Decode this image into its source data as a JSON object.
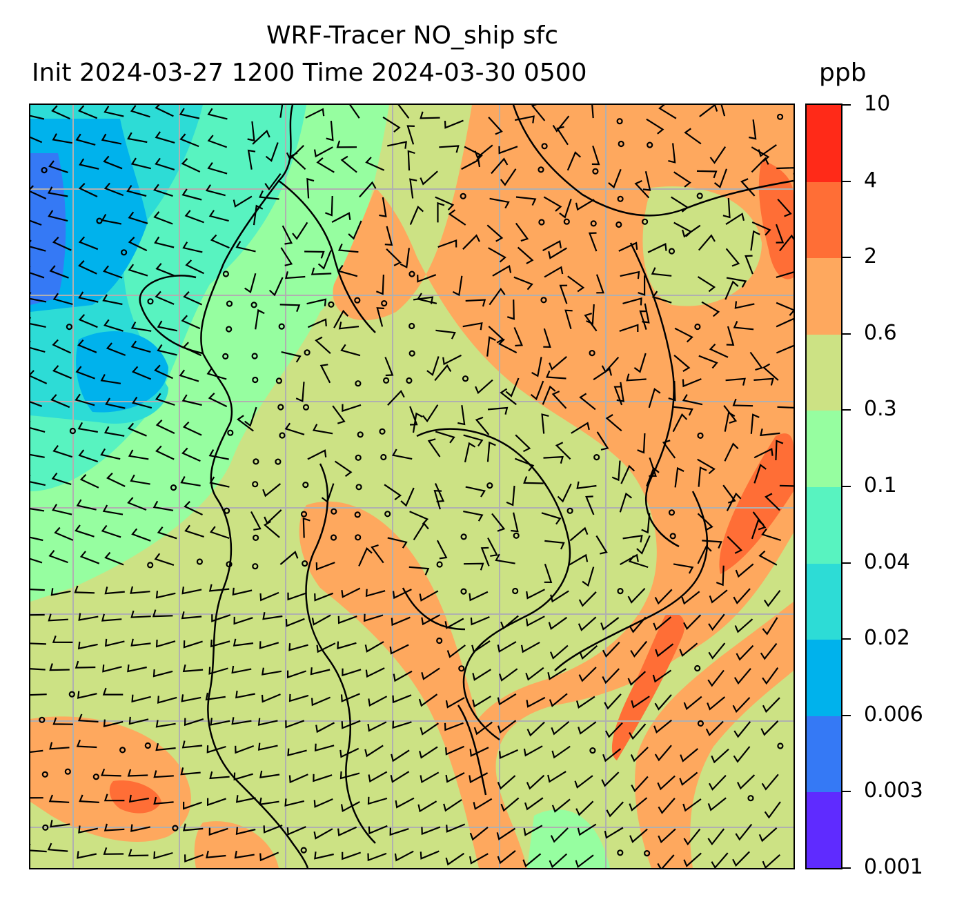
{
  "title": {
    "line1": "WRF-Tracer NO_ship sfc",
    "line2": "Init 2024-03-27 1200 Time 2024-03-30 0500",
    "units": "ppb"
  },
  "colorbar": {
    "levels": [
      "0.001",
      "0.003",
      "0.006",
      "0.02",
      "0.04",
      "0.1",
      "0.3",
      "0.6",
      "2",
      "4",
      "10"
    ],
    "colors": [
      "#5f2bff",
      "#3579f5",
      "#00b2ec",
      "#2ddcd6",
      "#58f3c0",
      "#96fea0",
      "#cce284",
      "#fea85e",
      "#ff6e36",
      "#ff2a18"
    ]
  },
  "map": {
    "field": "NO_ship surface concentration",
    "overlays": [
      "wind-barbs",
      "coastlines",
      "lat-lon-gridlines"
    ],
    "gridlines_count": {
      "vertical": 6,
      "horizontal": 7
    },
    "colors": {
      "grid": "#b0b0b0",
      "coast": "#000000",
      "barb": "#000000"
    }
  }
}
